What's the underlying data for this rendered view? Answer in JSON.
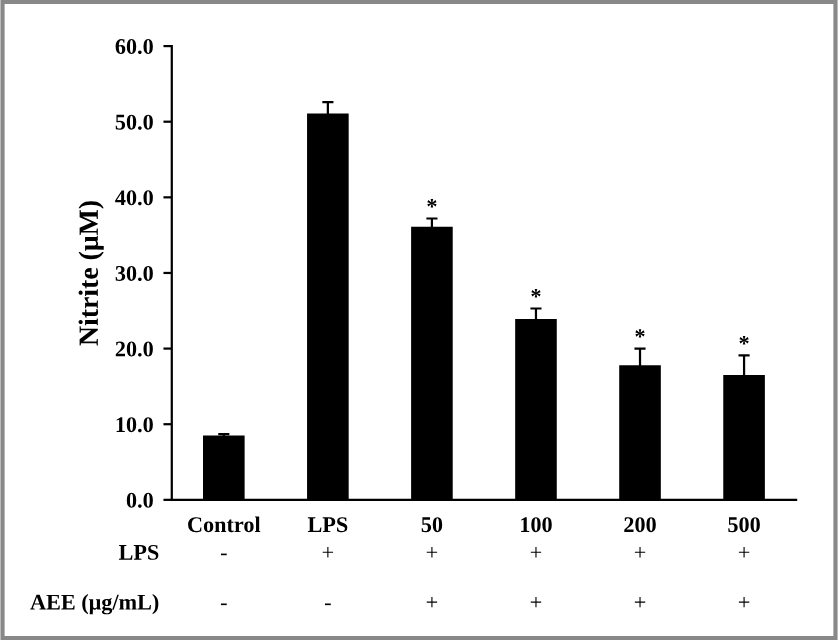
{
  "chart_data": {
    "type": "bar",
    "ylabel": "Nitrite (μM)",
    "categories": [
      "Control",
      "LPS",
      "50",
      "100",
      "200",
      "500"
    ],
    "values": [
      8.5,
      51.1,
      36.1,
      23.9,
      17.8,
      16.5
    ],
    "errors": [
      0.2,
      1.5,
      1.1,
      1.4,
      2.2,
      2.6
    ],
    "color": "#000000",
    "ylim": [
      0,
      60
    ],
    "yticks": [
      {
        "value": 0,
        "label": "0.0"
      },
      {
        "value": 10,
        "label": "10.0"
      },
      {
        "value": 20,
        "label": "20.0"
      },
      {
        "value": 30,
        "label": "30.0"
      },
      {
        "value": 40,
        "label": "40.0"
      },
      {
        "value": 50,
        "label": "50.0"
      },
      {
        "value": 60,
        "label": "60.0"
      }
    ],
    "grid": false,
    "legend": false,
    "annotations": [
      {
        "text": "*",
        "x": "50",
        "y": 37.2
      },
      {
        "text": "*",
        "x": "100",
        "y": 25.3
      },
      {
        "text": "*",
        "x": "200",
        "y": 20.0
      },
      {
        "text": "*",
        "x": "500",
        "y": 19.1
      },
      "LPS",
      "-",
      "+",
      "+",
      "+",
      "+",
      "+",
      "AEE (μg/mL)",
      "-",
      "-",
      "+",
      "+",
      "+",
      "+"
    ]
  }
}
